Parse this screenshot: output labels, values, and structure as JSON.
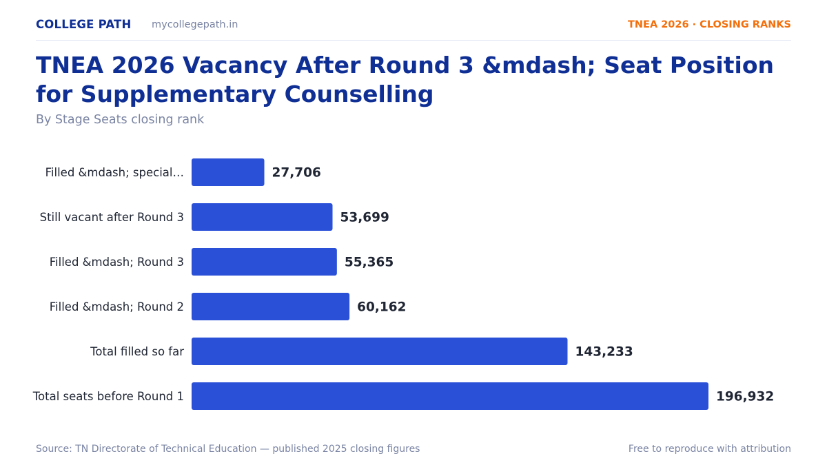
{
  "header": {
    "brand": "COLLEGE PATH",
    "domain": "mycollegepath.in",
    "tag": "TNEA 2026 · CLOSING RANKS"
  },
  "title": "TNEA 2026 Vacancy After Round 3 &mdash; Seat Position for Supplementary Counselling",
  "subtitle": "By Stage Seats closing rank",
  "footer": {
    "source": "Source: TN Directorate of Technical Education — published 2025 closing figures",
    "license": "Free to reproduce with attribution"
  },
  "colors": {
    "bar": "#2a50d8",
    "brand": "#0f2f95",
    "accent": "#f36f0c",
    "muted": "#7a84a3",
    "text": "#1f2533"
  },
  "chart_data": {
    "type": "bar",
    "orientation": "horizontal",
    "categories": [
      "Filled &mdash; special…",
      "Still vacant after Round 3",
      "Filled &mdash; Round 3",
      "Filled &mdash; Round 2",
      "Total filled so far",
      "Total seats before Round 1"
    ],
    "values": [
      27706,
      53699,
      55365,
      60162,
      143233,
      196932
    ],
    "value_labels": [
      "27,706",
      "53,699",
      "55,365",
      "60,162",
      "143,233",
      "196,932"
    ],
    "xlim": [
      0,
      196932
    ],
    "grid": false,
    "legend": "none"
  }
}
